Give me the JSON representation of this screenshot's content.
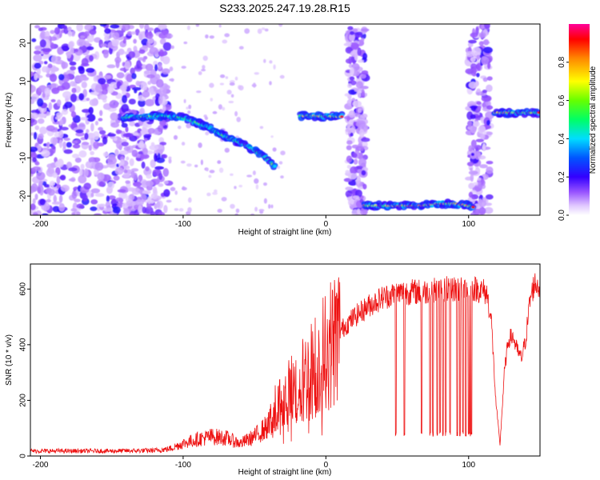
{
  "title": "S233.2025.247.19.28.R15",
  "colorbar": {
    "label": "Normalized spectral amplitude",
    "range": [
      0,
      1
    ],
    "ticks": [
      "0.0",
      "0.2",
      "0.4",
      "0.6",
      "0.8"
    ]
  },
  "chart_data": [
    {
      "type": "heatmap",
      "title": "S233.2025.247.19.28.R15",
      "xlabel": "Height of straight line (km)",
      "ylabel": "Frequency (Hz)",
      "xlim": [
        -207,
        150
      ],
      "ylim": [
        -25,
        25
      ],
      "xticks": [
        "-200",
        "-100",
        "0",
        "100"
      ],
      "yticks": [
        "-20",
        "-10",
        "0",
        "10",
        "20"
      ],
      "noise_bands_km": [
        [
          -207,
          -110
        ],
        [
          15,
          28
        ],
        [
          100,
          115
        ]
      ],
      "ridges": [
        {
          "x": [
            -142,
            -128,
            -112,
            -100,
            -90,
            -80,
            -70,
            -60,
            -50,
            -42,
            -35
          ],
          "freq_hz": [
            0.5,
            0.8,
            1.0,
            0.5,
            -0.8,
            -2.5,
            -4.5,
            -6.0,
            -8.0,
            -10.0,
            -12.5
          ],
          "peak_amp": 0.65
        },
        {
          "x": [
            -18,
            -10,
            0,
            8,
            12
          ],
          "freq_hz": [
            1.0,
            1.0,
            0.8,
            0.8,
            0.8
          ],
          "peak_amp": 0.95
        },
        {
          "x": [
            27,
            45,
            65,
            80,
            90,
            100,
            104
          ],
          "freq_hz": [
            -22.5,
            -22.5,
            -22.5,
            -22.0,
            -22.0,
            -22.5,
            -23.0
          ],
          "peak_amp": 1.0
        },
        {
          "x": [
            118,
            130,
            140,
            150
          ],
          "freq_hz": [
            1.8,
            1.8,
            1.8,
            1.8
          ],
          "peak_amp": 0.95
        }
      ]
    },
    {
      "type": "line",
      "xlabel": "Height of straight line (km)",
      "ylabel": "SNR (10 * v/v)",
      "xlim": [
        -207,
        150
      ],
      "ylim": [
        0,
        690
      ],
      "xticks": [
        "-200",
        "-100",
        "0",
        "100"
      ],
      "yticks": [
        "0",
        "200",
        "400",
        "600"
      ],
      "series": [
        {
          "name": "SNR",
          "color": "#ee1111",
          "x": [
            -207,
            -180,
            -150,
            -120,
            -110,
            -100,
            -90,
            -80,
            -70,
            -60,
            -50,
            -40,
            -35,
            -30,
            -20,
            -10,
            0,
            10,
            20,
            30,
            40,
            50,
            60,
            70,
            80,
            90,
            95,
            100,
            105,
            110,
            113,
            116,
            119,
            122,
            125,
            128,
            131,
            134,
            137,
            140,
            143,
            146,
            150
          ],
          "y": [
            18,
            18,
            18,
            20,
            25,
            45,
            60,
            70,
            65,
            45,
            70,
            110,
            170,
            200,
            250,
            310,
            380,
            450,
            500,
            540,
            570,
            585,
            590,
            590,
            600,
            600,
            600,
            605,
            600,
            595,
            580,
            480,
            200,
            40,
            300,
            420,
            430,
            380,
            350,
            420,
            560,
            620,
            610
          ]
        }
      ],
      "dropouts_km": [
        49,
        55,
        67,
        73,
        75,
        78,
        80,
        82,
        84,
        87,
        92,
        94,
        96,
        98,
        100,
        101,
        102
      ]
    }
  ]
}
